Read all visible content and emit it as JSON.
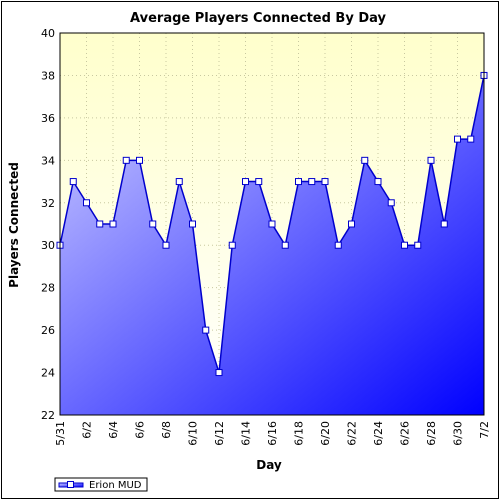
{
  "chart_data": {
    "type": "area",
    "title": "Average Players Connected By Day",
    "xlabel": "Day",
    "ylabel": "Players Connected",
    "ylim": [
      22,
      40
    ],
    "yticks": [
      22,
      24,
      26,
      28,
      30,
      32,
      34,
      36,
      38,
      40
    ],
    "grid": true,
    "legend_position": "bottom-left",
    "x": [
      "5/31",
      "6/1",
      "6/2",
      "6/3",
      "6/4",
      "6/5",
      "6/6",
      "6/7",
      "6/8",
      "6/9",
      "6/10",
      "6/11",
      "6/12",
      "6/13",
      "6/14",
      "6/15",
      "6/16",
      "6/17",
      "6/18",
      "6/19",
      "6/20",
      "6/21",
      "6/22",
      "6/23",
      "6/24",
      "6/25",
      "6/26",
      "6/27",
      "6/28",
      "6/29",
      "6/30",
      "7/1",
      "7/2"
    ],
    "xtick_labels": [
      "5/31",
      "6/2",
      "6/4",
      "6/6",
      "6/8",
      "6/10",
      "6/12",
      "6/14",
      "6/16",
      "6/18",
      "6/20",
      "6/22",
      "6/24",
      "6/26",
      "6/28",
      "6/30",
      "7/2"
    ],
    "series": [
      {
        "name": "Erion MUD",
        "color": "#0000ff",
        "values": [
          30,
          33,
          32,
          31,
          31,
          34,
          34,
          31,
          30,
          33,
          31,
          26,
          24,
          30,
          33,
          33,
          31,
          30,
          33,
          33,
          33,
          30,
          31,
          34,
          33,
          32,
          30,
          30,
          34,
          31,
          35,
          35,
          38
        ]
      }
    ],
    "colors": {
      "plot_background_top": "#ffffcc",
      "plot_background_bottom": "#ffffff",
      "area_light": "#c8c8ff",
      "area_dark": "#0000ff",
      "line": "#0000cc",
      "grid": "#c8c8a0"
    }
  }
}
